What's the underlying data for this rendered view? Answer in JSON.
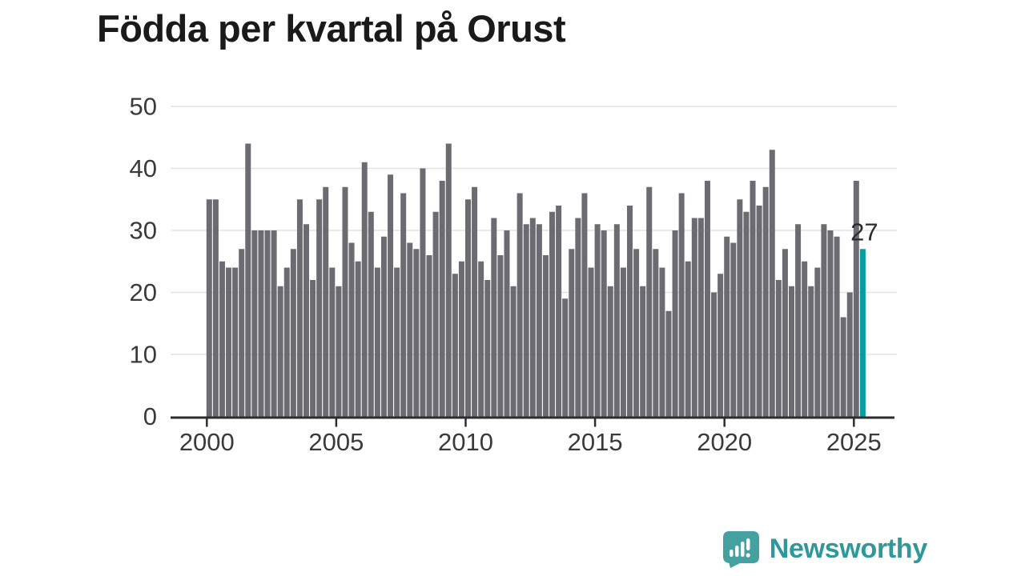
{
  "title": "Födda per kvartal på Orust",
  "branding": {
    "logo_text": "Newsworthy"
  },
  "colors": {
    "bar": "#6c6b71",
    "highlight": "#089ea0",
    "grid": "#e3e3e3",
    "axis": "#2d2d2d",
    "tick_text": "#3a3a3a",
    "annotation_text": "#2b2b2b",
    "logo_badge": "#45a1a0",
    "logo_text": "#2f989a"
  },
  "chart_data": {
    "type": "bar",
    "title": "Födda per kvartal på Orust",
    "xlabel": "",
    "ylabel": "",
    "ylim": [
      0,
      50
    ],
    "grid": "horizontal",
    "legend": "none",
    "start_quarter": "2000-Q1",
    "frequency": "quarterly",
    "x_tick_labels": [
      "2000",
      "2005",
      "2010",
      "2015",
      "2020",
      "2025"
    ],
    "y_ticks": [
      0,
      10,
      20,
      30,
      40,
      50
    ],
    "values": [
      35,
      35,
      25,
      24,
      24,
      27,
      44,
      30,
      30,
      30,
      30,
      21,
      24,
      27,
      35,
      31,
      22,
      35,
      37,
      24,
      21,
      37,
      28,
      25,
      41,
      33,
      24,
      29,
      39,
      24,
      36,
      28,
      27,
      40,
      26,
      33,
      38,
      44,
      23,
      25,
      35,
      37,
      25,
      22,
      32,
      26,
      30,
      21,
      36,
      31,
      32,
      31,
      26,
      33,
      34,
      19,
      27,
      32,
      36,
      24,
      31,
      30,
      21,
      31,
      24,
      34,
      27,
      21,
      37,
      27,
      24,
      17,
      30,
      36,
      25,
      32,
      32,
      38,
      20,
      23,
      29,
      28,
      35,
      33,
      38,
      34,
      37,
      43,
      22,
      27,
      21,
      31,
      25,
      21,
      24,
      31,
      30,
      29,
      16,
      20,
      38,
      27
    ],
    "highlight": {
      "index": 101,
      "value": 27,
      "label": "27"
    },
    "annotation": {
      "text": "27"
    }
  }
}
